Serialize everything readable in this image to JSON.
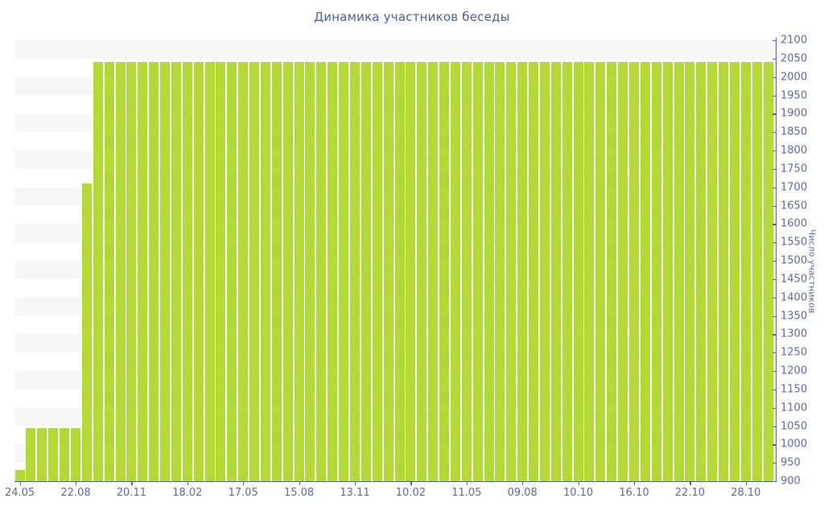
{
  "chart_data": {
    "type": "bar",
    "title": "Динамика участников беседы",
    "ylabel": "Число участников",
    "xlabel": "",
    "ylim": [
      900,
      2100
    ],
    "ytick_step": 50,
    "grid": "horizontal-stripes",
    "legend": "none",
    "x_labels": [
      "24.05",
      "22.08",
      "20.11",
      "18.02",
      "17.05",
      "15.08",
      "13.11",
      "10.02",
      "11.05",
      "09.08",
      "10.10",
      "16.10",
      "22.10",
      "28.10"
    ],
    "x_label_every": 5,
    "values": [
      930,
      1045,
      1045,
      1045,
      1045,
      1045,
      1710,
      2040,
      2040,
      2040,
      2040,
      2040,
      2040,
      2040,
      2040,
      2040,
      2040,
      2040,
      2040,
      2040,
      2040,
      2040,
      2040,
      2040,
      2040,
      2040,
      2040,
      2040,
      2040,
      2040,
      2040,
      2040,
      2040,
      2040,
      2040,
      2040,
      2040,
      2040,
      2040,
      2040,
      2040,
      2040,
      2040,
      2040,
      2040,
      2040,
      2040,
      2040,
      2040,
      2040,
      2040,
      2040,
      2040,
      2040,
      2040,
      2040,
      2040,
      2040,
      2040,
      2040,
      2040,
      2040,
      2040,
      2040,
      2040,
      2040,
      2040,
      2040
    ]
  },
  "colors": {
    "bar": "#b2d936",
    "axis": "#51639b",
    "tick_label": "#5b6b9e",
    "title": "#4a5f9e",
    "stripe": "#f7f7f7",
    "background": "#ffffff"
  }
}
